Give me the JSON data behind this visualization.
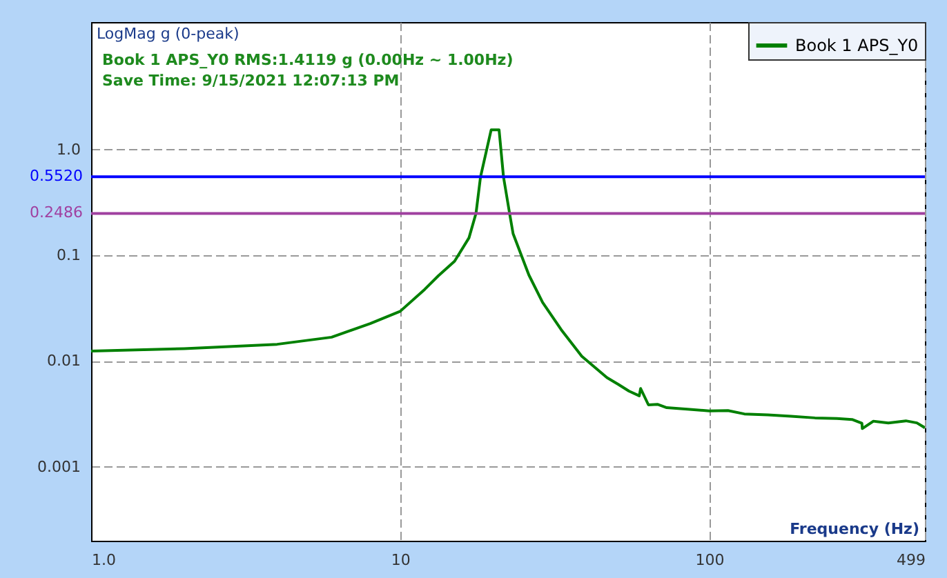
{
  "chart_data": {
    "type": "line",
    "ylabel": "LogMag g (0-peak)",
    "xlabel": "Frequency (Hz)",
    "annotations": [
      "Book 1 APS_Y0 RMS:1.4119 g  (0.00Hz ~ 1.00Hz)",
      "Save Time: 9/15/2021 12:07:13 PM"
    ],
    "log": "xy",
    "grid": true,
    "legend": "top right",
    "xlim": [
      1,
      499
    ],
    "ylim": [
      0.0002,
      16
    ],
    "xticks": [
      {
        "value": 1,
        "label": "1.0"
      },
      10,
      100,
      499
    ],
    "yticks": [
      0.001,
      0.01,
      0.1,
      {
        "value": 1,
        "label": "1.0"
      }
    ],
    "series": [
      {
        "name": "Book 1 APS_Y0",
        "color": "#008000",
        "x": [
          1,
          2,
          4,
          6,
          8,
          10,
          12,
          13.3,
          15,
          16.7,
          17.6,
          18.2,
          19.7,
          20.9,
          21.6,
          22.6,
          23.2,
          26.1,
          28.9,
          33.2,
          38.7,
          46.7,
          50.9,
          55,
          59.4,
          60,
          63.6,
          68,
          72.9,
          85,
          100,
          115,
          130,
          155,
          184,
          220,
          259,
          290,
          312,
          313,
          340,
          380,
          433,
          470,
          499
        ],
        "values": [
          0.0124,
          0.0131,
          0.0144,
          0.0168,
          0.0226,
          0.0295,
          0.0475,
          0.064,
          0.0877,
          0.146,
          0.249,
          0.55,
          1.53,
          1.53,
          0.55,
          0.249,
          0.16,
          0.065,
          0.0359,
          0.0198,
          0.0111,
          0.00697,
          0.006,
          0.0052,
          0.00469,
          0.0055,
          0.00385,
          0.0039,
          0.00362,
          0.0035,
          0.00338,
          0.0034,
          0.00316,
          0.0031,
          0.003,
          0.0029,
          0.00286,
          0.0028,
          0.00258,
          0.0023,
          0.0027,
          0.0026,
          0.00272,
          0.0026,
          0.00234
        ]
      }
    ],
    "ref_lines": [
      {
        "axis": "y",
        "value": 0.552,
        "label": "0.5520",
        "color": "#0000ff"
      },
      {
        "axis": "y",
        "value": 0.2486,
        "label": "0.2486",
        "color": "#a040a0"
      }
    ]
  }
}
